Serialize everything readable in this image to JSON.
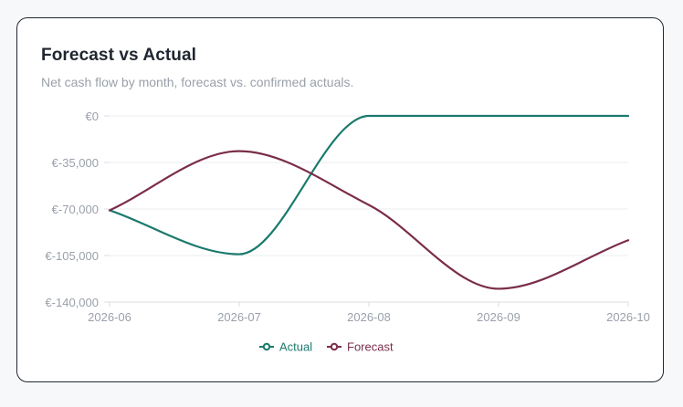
{
  "card": {
    "title": "Forecast vs Actual",
    "subtitle": "Net cash flow by month, forecast vs. confirmed actuals."
  },
  "chart_data": {
    "type": "line",
    "title": "Forecast vs Actual",
    "subtitle": "Net cash flow by month, forecast vs. confirmed actuals.",
    "x": [
      "2026-06",
      "2026-07",
      "2026-08",
      "2026-09",
      "2026-10"
    ],
    "y_ticks": [
      0,
      -35000,
      -70000,
      -105000,
      -140000
    ],
    "y_tick_labels": [
      "€0",
      "€-35,000",
      "€-70,000",
      "€-105,000",
      "€-140,000"
    ],
    "ylim": [
      -140000,
      0
    ],
    "grid": true,
    "legend_position": "bottom",
    "series": [
      {
        "name": "Actual",
        "color": "#1a7a6c",
        "values": [
          -71000,
          -104000,
          0,
          0,
          0
        ]
      },
      {
        "name": "Forecast",
        "color": "#7a2d4b",
        "values": [
          -71000,
          -26500,
          -67000,
          -130000,
          -93500
        ]
      }
    ],
    "xlabel": "",
    "ylabel": ""
  }
}
